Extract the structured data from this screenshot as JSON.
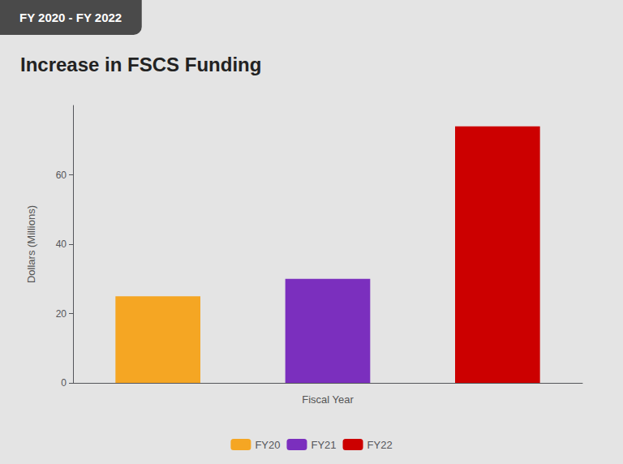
{
  "chart_data": {
    "type": "bar",
    "title": "Increase in FSCS Funding",
    "subtitle": "FY 2020 - FY 2022",
    "categories": [
      "FY20",
      "FY21",
      "FY22"
    ],
    "values": [
      25,
      30,
      74
    ],
    "colors": [
      "#F5A623",
      "#7B2FBE",
      "#CC0000"
    ],
    "xlabel": "Fiscal Year",
    "ylabel": "Dollars (Millions)",
    "ylim": [
      0,
      80
    ],
    "yticks": [
      0,
      20,
      40,
      60
    ],
    "grid": false,
    "legend": "bottom",
    "tick_labels": "y"
  }
}
